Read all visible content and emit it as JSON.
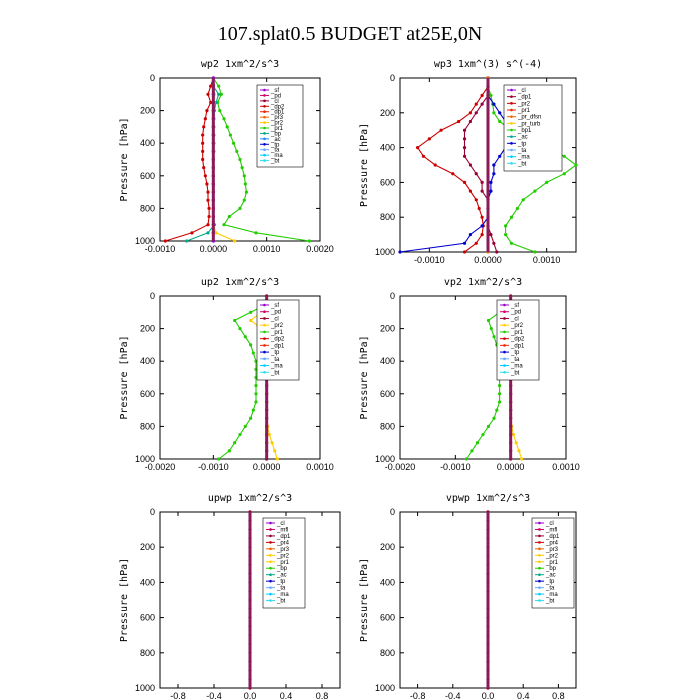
{
  "figure_title": "107.splat0.5  BUDGET at25E,0N",
  "colors": {
    "axis": "#000000",
    "legend": [
      "#9900cc",
      "#cc0066",
      "#990033",
      "#cc0000",
      "#ee2200",
      "#ee6600",
      "#ffcc00",
      "#22cc00",
      "#00aa88",
      "#2288ff",
      "#0000cc",
      "#66aaff",
      "#00ccff",
      "#33ddee"
    ]
  },
  "chart_data": [
    {
      "type": "line",
      "title": "wp2   1xm^2/s^3",
      "ylabel": "Pressure [hPa]",
      "xlim": [
        -0.001,
        0.002
      ],
      "ylim": [
        1000,
        0
      ],
      "xticks": [
        "-0.0010",
        "0.0000",
        "0.0010",
        "0.0020"
      ],
      "xtick_values": [
        -0.001,
        0,
        0.001,
        0.002
      ],
      "yticks": [
        "0",
        "200",
        "400",
        "600",
        "800",
        "1000"
      ],
      "legend": [
        "_sf",
        "_pd",
        "_cl",
        "_dp2",
        "_dp1",
        "_pr3",
        "_pr2",
        "_pr1",
        "_bp",
        "_ac",
        "_tp",
        "_ta",
        "_ma",
        "_bt"
      ],
      "legend_colors": [
        0,
        1,
        2,
        3,
        4,
        5,
        6,
        7,
        8,
        9,
        10,
        11,
        12,
        13
      ],
      "pressure": [
        0,
        50,
        100,
        150,
        200,
        250,
        300,
        350,
        400,
        450,
        500,
        550,
        600,
        650,
        700,
        750,
        800,
        850,
        900,
        950,
        1000
      ],
      "series": [
        {
          "color": 7,
          "values": [
            0,
            0.0001,
            0.00015,
            8e-05,
            0.00012,
            0.0002,
            0.00026,
            0.00032,
            0.00038,
            0.00044,
            0.0005,
            0.00054,
            0.00058,
            0.0006,
            0.00062,
            0.00058,
            0.0005,
            0.0003,
            0.0002,
            0.0008,
            0.0018
          ]
        },
        {
          "color": 3,
          "values": [
            0,
            -5e-05,
            -0.0001,
            -5e-05,
            -0.00012,
            -0.00015,
            -0.00018,
            -0.0002,
            -0.0002,
            -0.0002,
            -0.0002,
            -0.00018,
            -0.00015,
            -0.00012,
            -0.0001,
            -0.0001,
            -8e-05,
            -8e-05,
            -0.0001,
            -0.0004,
            -0.0009
          ]
        },
        {
          "color": 8,
          "values": [
            0,
            0,
            0.0001,
            5e-05,
            2e-05,
            1e-05,
            1e-05,
            1e-05,
            1e-05,
            1e-05,
            0,
            0,
            0,
            0,
            0,
            0,
            0,
            0,
            2e-05,
            -0.0001,
            -0.0005
          ]
        },
        {
          "color": 6,
          "values": [
            0,
            0,
            2e-05,
            1e-05,
            0,
            0,
            0,
            0,
            0,
            0,
            0,
            0,
            0,
            0,
            0,
            0,
            0,
            0,
            0,
            5e-05,
            0.0004
          ]
        },
        {
          "color": 9,
          "values": [
            0,
            0,
            0,
            0,
            0,
            0,
            0,
            0,
            0,
            0,
            0,
            0,
            0,
            0,
            0,
            0,
            0,
            0,
            0,
            0,
            0
          ]
        },
        {
          "color": 0,
          "values": [
            0,
            0,
            0,
            0,
            0,
            0,
            0,
            0,
            0,
            0,
            0,
            0,
            0,
            0,
            0,
            0,
            0,
            0,
            0,
            0,
            0
          ]
        }
      ]
    },
    {
      "type": "line",
      "title": "wp3   1xm^(3) s^(-4)",
      "ylabel": "Pressure [hPa]",
      "xlim": [
        -0.0015,
        0.0015
      ],
      "ylim": [
        1000,
        0
      ],
      "xticks": [
        "-0.0010",
        "0.0000",
        "0.0010"
      ],
      "xtick_values": [
        -0.001,
        0,
        0.001
      ],
      "yticks": [
        "0",
        "200",
        "400",
        "600",
        "800",
        "1000"
      ],
      "legend": [
        "_cl",
        "_dp1",
        "_pr2",
        "_pr1",
        "_pr_dfsn",
        "_pr_turb",
        "_bp1",
        "_ac",
        "_tp",
        "_ta",
        "_ma",
        "_bt"
      ],
      "legend_colors": [
        0,
        2,
        3,
        4,
        5,
        6,
        7,
        8,
        10,
        11,
        12,
        13
      ],
      "pressure": [
        0,
        50,
        100,
        150,
        200,
        250,
        300,
        350,
        400,
        450,
        500,
        550,
        600,
        650,
        700,
        750,
        800,
        850,
        900,
        950,
        1000
      ],
      "series": [
        {
          "color": 7,
          "values": [
            0,
            0,
            5e-05,
            8e-05,
            0.0001,
            0.0002,
            0.0004,
            0.0007,
            0.001,
            0.0013,
            0.0015,
            0.0013,
            0.001,
            0.0008,
            0.0006,
            0.0005,
            0.0004,
            0.0003,
            0.0003,
            0.0004,
            0.0008
          ]
        },
        {
          "color": 3,
          "values": [
            0,
            0,
            -0.0001,
            -0.0002,
            -0.0003,
            -0.0005,
            -0.0008,
            -0.001,
            -0.0012,
            -0.0011,
            -0.0009,
            -0.0006,
            -0.0004,
            -0.0003,
            -0.0002,
            -0.00015,
            -0.0001,
            -8e-05,
            -0.0001,
            -0.0002,
            -0.0004
          ]
        },
        {
          "color": 10,
          "values": [
            0,
            0,
            0,
            0.0001,
            0.0002,
            0.0003,
            0.0003,
            0.0003,
            0.0003,
            0.0002,
            0.0001,
            0.0001,
            5e-05,
            5e-05,
            0,
            0,
            0,
            -0.0001,
            -0.0003,
            -0.0004,
            -0.0015
          ]
        },
        {
          "color": 2,
          "values": [
            0,
            0,
            0,
            -0.0001,
            -0.0002,
            -0.0003,
            -0.0004,
            -0.0004,
            -0.0004,
            -0.0004,
            -0.0003,
            -0.0002,
            -0.0001,
            -0.0001,
            0,
            0,
            0,
            0,
            5e-05,
            0.0001,
            0.00015
          ]
        },
        {
          "color": 5,
          "values": [
            0,
            0,
            0,
            0,
            0,
            0,
            0,
            0,
            0,
            0,
            0,
            0,
            0,
            0,
            0,
            0,
            0,
            0,
            0,
            0,
            0
          ]
        }
      ]
    },
    {
      "type": "line",
      "title": "up2   1xm^2/s^3",
      "ylabel": "Pressure [hPa]",
      "xlim": [
        -0.002,
        0.001
      ],
      "ylim": [
        1000,
        0
      ],
      "xticks": [
        "-0.0020",
        "-0.0010",
        "0.0000",
        "0.0010"
      ],
      "xtick_values": [
        -0.002,
        -0.001,
        0,
        0.001
      ],
      "yticks": [
        "0",
        "200",
        "400",
        "600",
        "800",
        "1000"
      ],
      "legend": [
        "_sf",
        "_pd",
        "_cl",
        "_pr2",
        "_pr1",
        "_dp2",
        "_dp1",
        "_tp",
        "_ta",
        "_ma",
        "_bt"
      ],
      "legend_colors": [
        0,
        1,
        2,
        6,
        7,
        3,
        4,
        10,
        11,
        12,
        13
      ],
      "pressure": [
        0,
        50,
        100,
        150,
        200,
        250,
        300,
        350,
        400,
        450,
        500,
        550,
        600,
        650,
        700,
        750,
        800,
        850,
        900,
        950,
        1000
      ],
      "series": [
        {
          "color": 7,
          "values": [
            0,
            0,
            -0.0003,
            -0.0006,
            -0.0005,
            -0.0004,
            -0.0003,
            -0.00025,
            -0.0002,
            -0.0002,
            -0.0002,
            -0.0002,
            -0.0002,
            -0.0002,
            -0.00025,
            -0.0003,
            -0.0004,
            -0.0005,
            -0.0006,
            -0.0007,
            -0.0009
          ]
        },
        {
          "color": 9,
          "values": [
            0,
            0,
            0.0002,
            0.0005,
            0.00015,
            5e-05,
            2e-05,
            0,
            0,
            0,
            0,
            0,
            0,
            0,
            0,
            0,
            0,
            0,
            0,
            0,
            0
          ]
        },
        {
          "color": 6,
          "values": [
            0,
            0,
            -0.0001,
            -0.0003,
            -0.0001,
            -5e-05,
            -2e-05,
            0,
            0,
            0,
            0,
            0,
            0,
            0,
            0,
            0,
            2e-05,
            5e-05,
            0.0001,
            0.00015,
            0.0002
          ]
        },
        {
          "color": 2,
          "values": [
            0,
            0,
            0,
            0,
            0,
            0,
            0,
            0,
            0,
            0,
            0,
            0,
            0,
            0,
            0,
            0,
            0,
            0,
            0,
            0,
            0
          ]
        }
      ]
    },
    {
      "type": "line",
      "title": "vp2   1xm^2/s^3",
      "ylabel": "Pressure [hPa]",
      "xlim": [
        -0.002,
        0.001
      ],
      "ylim": [
        1000,
        0
      ],
      "xticks": [
        "-0.0020",
        "-0.0010",
        "0.0000",
        "0.0010"
      ],
      "xtick_values": [
        -0.002,
        -0.001,
        0,
        0.001
      ],
      "yticks": [
        "0",
        "200",
        "400",
        "600",
        "800",
        "1000"
      ],
      "legend": [
        "_sf",
        "_pd",
        "_cl",
        "_pr2",
        "_pr1",
        "_dp2",
        "_dp1",
        "_tp",
        "_ta",
        "_ma",
        "_bt"
      ],
      "legend_colors": [
        0,
        1,
        2,
        6,
        7,
        3,
        4,
        10,
        11,
        12,
        13
      ],
      "pressure": [
        0,
        50,
        100,
        150,
        200,
        250,
        300,
        350,
        400,
        450,
        500,
        550,
        600,
        650,
        700,
        750,
        800,
        850,
        900,
        950,
        1000
      ],
      "series": [
        {
          "color": 7,
          "values": [
            0,
            0,
            -0.0002,
            -0.0004,
            -0.00035,
            -0.0003,
            -0.00025,
            -0.0002,
            -0.0002,
            -0.0002,
            -0.0002,
            -0.0002,
            -0.0002,
            -0.0002,
            -0.00025,
            -0.0003,
            -0.0004,
            -0.0005,
            -0.0006,
            -0.0007,
            -0.0008
          ]
        },
        {
          "color": 6,
          "values": [
            0,
            0,
            -0.0001,
            -0.0002,
            -0.0001,
            -5e-05,
            -2e-05,
            0,
            0,
            0,
            0,
            0,
            0,
            0,
            0,
            0,
            2e-05,
            5e-05,
            0.0001,
            0.00015,
            0.0002
          ]
        },
        {
          "color": 2,
          "values": [
            0,
            0,
            0,
            0,
            0,
            0,
            0,
            0,
            0,
            0,
            0,
            0,
            0,
            0,
            0,
            0,
            0,
            0,
            0,
            0,
            0
          ]
        }
      ]
    },
    {
      "type": "line",
      "title": "upwp   1xm^2/s^3",
      "ylabel": "Pressure [hPa]",
      "xlim": [
        -1.0,
        1.0
      ],
      "ylim": [
        1000,
        0
      ],
      "xticks": [
        "-0.8",
        "-0.4",
        "0.0",
        "0.4",
        "0.8"
      ],
      "xtick_values": [
        -0.8,
        -0.4,
        0,
        0.4,
        0.8
      ],
      "yticks": [
        "0",
        "200",
        "400",
        "600",
        "800",
        "1000"
      ],
      "legend": [
        "_cl",
        "_mfl",
        "_dp1",
        "_pr4",
        "_pr3",
        "_pr2",
        "_pr1",
        "_bp",
        "_ac",
        "_tp",
        "_ta",
        "_ma",
        "_bt"
      ],
      "legend_colors": [
        0,
        1,
        2,
        3,
        5,
        6,
        6,
        7,
        8,
        10,
        11,
        12,
        13
      ],
      "pressure": [
        0,
        50,
        100,
        150,
        200,
        250,
        300,
        350,
        400,
        450,
        500,
        550,
        600,
        650,
        700,
        750,
        800,
        850,
        900,
        950,
        1000
      ],
      "series": [
        {
          "color": 0,
          "values": [
            0,
            0,
            0,
            0,
            0,
            0,
            0,
            0,
            0,
            0,
            0,
            0,
            0,
            0,
            0,
            0,
            0,
            0,
            0,
            0,
            0
          ]
        },
        {
          "color": 2,
          "values": [
            0,
            0,
            0,
            0,
            0,
            0,
            0,
            0,
            0,
            0,
            0,
            0,
            0,
            0,
            0,
            0,
            0,
            0,
            0,
            0,
            0
          ]
        }
      ]
    },
    {
      "type": "line",
      "title": "vpwp   1xm^2/s^3",
      "ylabel": "Pressure [hPa]",
      "xlim": [
        -1.0,
        1.0
      ],
      "ylim": [
        1000,
        0
      ],
      "xticks": [
        "-0.8",
        "-0.4",
        "0.0",
        "0.4",
        "0.8"
      ],
      "xtick_values": [
        -0.8,
        -0.4,
        0,
        0.4,
        0.8
      ],
      "yticks": [
        "0",
        "200",
        "400",
        "600",
        "800",
        "1000"
      ],
      "legend": [
        "_cl",
        "_mfl",
        "_dp1",
        "_pr4",
        "_pr3",
        "_pr2",
        "_pr1",
        "_bp",
        "_ac",
        "_tp",
        "_ta",
        "_ma",
        "_bt"
      ],
      "legend_colors": [
        0,
        1,
        2,
        3,
        5,
        6,
        6,
        7,
        8,
        10,
        11,
        12,
        13
      ],
      "pressure": [
        0,
        50,
        100,
        150,
        200,
        250,
        300,
        350,
        400,
        450,
        500,
        550,
        600,
        650,
        700,
        750,
        800,
        850,
        900,
        950,
        1000
      ],
      "series": [
        {
          "color": 0,
          "values": [
            0,
            0,
            0,
            0,
            0,
            0,
            0,
            0,
            0,
            0,
            0,
            0,
            0,
            0,
            0,
            0,
            0,
            0,
            0,
            0,
            0
          ]
        },
        {
          "color": 2,
          "values": [
            0,
            0,
            0,
            0,
            0,
            0,
            0,
            0,
            0,
            0,
            0,
            0,
            0,
            0,
            0,
            0,
            0,
            0,
            0,
            0,
            0
          ]
        }
      ]
    }
  ]
}
